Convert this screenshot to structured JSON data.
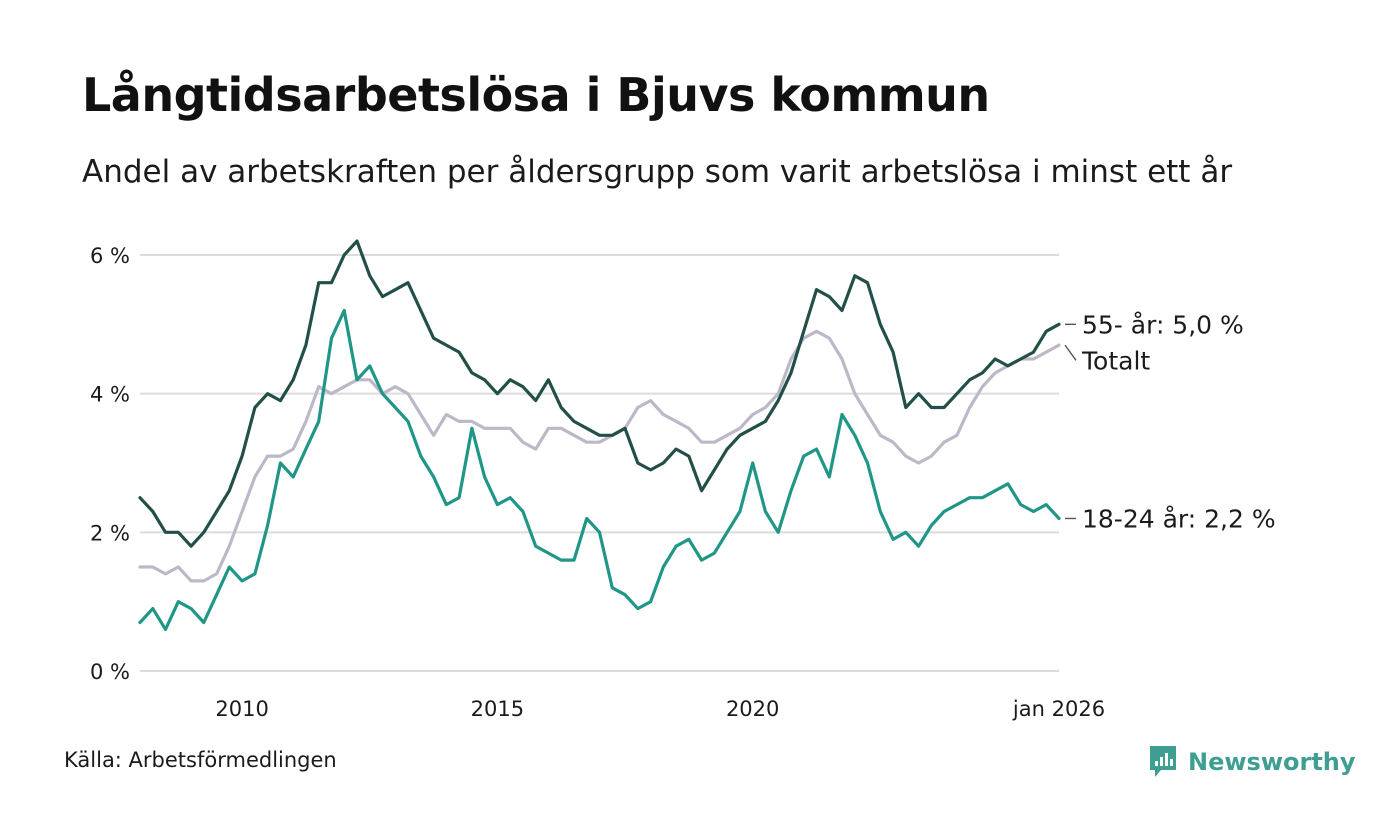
{
  "header": {
    "title": "Långtidsarbetslösa i Bjuvs kommun",
    "subtitle": "Andel av arbetskraften per åldersgrupp som varit arbetslösa i minst ett år"
  },
  "footer": {
    "source": "Källa: Arbetsförmedlingen",
    "brand": "Newsworthy",
    "brand_color": "#3e9e92"
  },
  "chart_data": {
    "type": "line",
    "title": "Långtidsarbetslösa i Bjuvs kommun",
    "xlabel": "",
    "ylabel": "",
    "xlim": [
      2008.0,
      2026.0
    ],
    "ylim": [
      0,
      6
    ],
    "grid": true,
    "legend": "direct labels at right end of lines",
    "y_ticks": [
      {
        "value": 0,
        "label": "0 %"
      },
      {
        "value": 2,
        "label": "2 %"
      },
      {
        "value": 4,
        "label": "4 %"
      },
      {
        "value": 6,
        "label": "6 %"
      }
    ],
    "x_ticks": [
      {
        "value": 2010,
        "label": "2010"
      },
      {
        "value": 2015,
        "label": "2015"
      },
      {
        "value": 2020,
        "label": "2020"
      },
      {
        "value": 2026,
        "label": "jan 2026"
      }
    ],
    "series": [
      {
        "name": "Totalt",
        "end_label": "Totalt",
        "color": "#bdb8c8",
        "points": [
          [
            2008.0,
            1.5
          ],
          [
            2008.25,
            1.5
          ],
          [
            2008.5,
            1.4
          ],
          [
            2008.75,
            1.5
          ],
          [
            2009.0,
            1.3
          ],
          [
            2009.25,
            1.3
          ],
          [
            2009.5,
            1.4
          ],
          [
            2009.75,
            1.8
          ],
          [
            2010.0,
            2.3
          ],
          [
            2010.25,
            2.8
          ],
          [
            2010.5,
            3.1
          ],
          [
            2010.75,
            3.1
          ],
          [
            2011.0,
            3.2
          ],
          [
            2011.25,
            3.6
          ],
          [
            2011.5,
            4.1
          ],
          [
            2011.75,
            4.0
          ],
          [
            2012.0,
            4.1
          ],
          [
            2012.25,
            4.2
          ],
          [
            2012.5,
            4.2
          ],
          [
            2012.75,
            4.0
          ],
          [
            2013.0,
            4.1
          ],
          [
            2013.25,
            4.0
          ],
          [
            2013.5,
            3.7
          ],
          [
            2013.75,
            3.4
          ],
          [
            2014.0,
            3.7
          ],
          [
            2014.25,
            3.6
          ],
          [
            2014.5,
            3.6
          ],
          [
            2014.75,
            3.5
          ],
          [
            2015.0,
            3.5
          ],
          [
            2015.25,
            3.5
          ],
          [
            2015.5,
            3.3
          ],
          [
            2015.75,
            3.2
          ],
          [
            2016.0,
            3.5
          ],
          [
            2016.25,
            3.5
          ],
          [
            2016.5,
            3.4
          ],
          [
            2016.75,
            3.3
          ],
          [
            2017.0,
            3.3
          ],
          [
            2017.25,
            3.4
          ],
          [
            2017.5,
            3.5
          ],
          [
            2017.75,
            3.8
          ],
          [
            2018.0,
            3.9
          ],
          [
            2018.25,
            3.7
          ],
          [
            2018.5,
            3.6
          ],
          [
            2018.75,
            3.5
          ],
          [
            2019.0,
            3.3
          ],
          [
            2019.25,
            3.3
          ],
          [
            2019.5,
            3.4
          ],
          [
            2019.75,
            3.5
          ],
          [
            2020.0,
            3.7
          ],
          [
            2020.25,
            3.8
          ],
          [
            2020.5,
            4.0
          ],
          [
            2020.75,
            4.5
          ],
          [
            2021.0,
            4.8
          ],
          [
            2021.25,
            4.9
          ],
          [
            2021.5,
            4.8
          ],
          [
            2021.75,
            4.5
          ],
          [
            2022.0,
            4.0
          ],
          [
            2022.25,
            3.7
          ],
          [
            2022.5,
            3.4
          ],
          [
            2022.75,
            3.3
          ],
          [
            2023.0,
            3.1
          ],
          [
            2023.25,
            3.0
          ],
          [
            2023.5,
            3.1
          ],
          [
            2023.75,
            3.3
          ],
          [
            2024.0,
            3.4
          ],
          [
            2024.25,
            3.8
          ],
          [
            2024.5,
            4.1
          ],
          [
            2024.75,
            4.3
          ],
          [
            2025.0,
            4.4
          ],
          [
            2025.25,
            4.5
          ],
          [
            2025.5,
            4.5
          ],
          [
            2025.75,
            4.6
          ],
          [
            2026.0,
            4.7
          ]
        ]
      },
      {
        "name": "55- år",
        "end_label": "55- år: 5,0 %",
        "color": "#234f49",
        "points": [
          [
            2008.0,
            2.5
          ],
          [
            2008.25,
            2.3
          ],
          [
            2008.5,
            2.0
          ],
          [
            2008.75,
            2.0
          ],
          [
            2009.0,
            1.8
          ],
          [
            2009.25,
            2.0
          ],
          [
            2009.5,
            2.3
          ],
          [
            2009.75,
            2.6
          ],
          [
            2010.0,
            3.1
          ],
          [
            2010.25,
            3.8
          ],
          [
            2010.5,
            4.0
          ],
          [
            2010.75,
            3.9
          ],
          [
            2011.0,
            4.2
          ],
          [
            2011.25,
            4.7
          ],
          [
            2011.5,
            5.6
          ],
          [
            2011.75,
            5.6
          ],
          [
            2012.0,
            6.0
          ],
          [
            2012.25,
            6.2
          ],
          [
            2012.5,
            5.7
          ],
          [
            2012.75,
            5.4
          ],
          [
            2013.0,
            5.5
          ],
          [
            2013.25,
            5.6
          ],
          [
            2013.5,
            5.2
          ],
          [
            2013.75,
            4.8
          ],
          [
            2014.0,
            4.7
          ],
          [
            2014.25,
            4.6
          ],
          [
            2014.5,
            4.3
          ],
          [
            2014.75,
            4.2
          ],
          [
            2015.0,
            4.0
          ],
          [
            2015.25,
            4.2
          ],
          [
            2015.5,
            4.1
          ],
          [
            2015.75,
            3.9
          ],
          [
            2016.0,
            4.2
          ],
          [
            2016.25,
            3.8
          ],
          [
            2016.5,
            3.6
          ],
          [
            2016.75,
            3.5
          ],
          [
            2017.0,
            3.4
          ],
          [
            2017.25,
            3.4
          ],
          [
            2017.5,
            3.5
          ],
          [
            2017.75,
            3.0
          ],
          [
            2018.0,
            2.9
          ],
          [
            2018.25,
            3.0
          ],
          [
            2018.5,
            3.2
          ],
          [
            2018.75,
            3.1
          ],
          [
            2019.0,
            2.6
          ],
          [
            2019.25,
            2.9
          ],
          [
            2019.5,
            3.2
          ],
          [
            2019.75,
            3.4
          ],
          [
            2020.0,
            3.5
          ],
          [
            2020.25,
            3.6
          ],
          [
            2020.5,
            3.9
          ],
          [
            2020.75,
            4.3
          ],
          [
            2021.0,
            4.9
          ],
          [
            2021.25,
            5.5
          ],
          [
            2021.5,
            5.4
          ],
          [
            2021.75,
            5.2
          ],
          [
            2022.0,
            5.7
          ],
          [
            2022.25,
            5.6
          ],
          [
            2022.5,
            5.0
          ],
          [
            2022.75,
            4.6
          ],
          [
            2023.0,
            3.8
          ],
          [
            2023.25,
            4.0
          ],
          [
            2023.5,
            3.8
          ],
          [
            2023.75,
            3.8
          ],
          [
            2024.0,
            4.0
          ],
          [
            2024.25,
            4.2
          ],
          [
            2024.5,
            4.3
          ],
          [
            2024.75,
            4.5
          ],
          [
            2025.0,
            4.4
          ],
          [
            2025.25,
            4.5
          ],
          [
            2025.5,
            4.6
          ],
          [
            2025.75,
            4.9
          ],
          [
            2026.0,
            5.0
          ]
        ]
      },
      {
        "name": "18-24 år",
        "end_label": "18-24 år: 2,2 %",
        "color": "#1f9686",
        "points": [
          [
            2008.0,
            0.7
          ],
          [
            2008.25,
            0.9
          ],
          [
            2008.5,
            0.6
          ],
          [
            2008.75,
            1.0
          ],
          [
            2009.0,
            0.9
          ],
          [
            2009.25,
            0.7
          ],
          [
            2009.5,
            1.1
          ],
          [
            2009.75,
            1.5
          ],
          [
            2010.0,
            1.3
          ],
          [
            2010.25,
            1.4
          ],
          [
            2010.5,
            2.1
          ],
          [
            2010.75,
            3.0
          ],
          [
            2011.0,
            2.8
          ],
          [
            2011.25,
            3.2
          ],
          [
            2011.5,
            3.6
          ],
          [
            2011.75,
            4.8
          ],
          [
            2012.0,
            5.2
          ],
          [
            2012.25,
            4.2
          ],
          [
            2012.5,
            4.4
          ],
          [
            2012.75,
            4.0
          ],
          [
            2013.0,
            3.8
          ],
          [
            2013.25,
            3.6
          ],
          [
            2013.5,
            3.1
          ],
          [
            2013.75,
            2.8
          ],
          [
            2014.0,
            2.4
          ],
          [
            2014.25,
            2.5
          ],
          [
            2014.5,
            3.5
          ],
          [
            2014.75,
            2.8
          ],
          [
            2015.0,
            2.4
          ],
          [
            2015.25,
            2.5
          ],
          [
            2015.5,
            2.3
          ],
          [
            2015.75,
            1.8
          ],
          [
            2016.0,
            1.7
          ],
          [
            2016.25,
            1.6
          ],
          [
            2016.5,
            1.6
          ],
          [
            2016.75,
            2.2
          ],
          [
            2017.0,
            2.0
          ],
          [
            2017.25,
            1.2
          ],
          [
            2017.5,
            1.1
          ],
          [
            2017.75,
            0.9
          ],
          [
            2018.0,
            1.0
          ],
          [
            2018.25,
            1.5
          ],
          [
            2018.5,
            1.8
          ],
          [
            2018.75,
            1.9
          ],
          [
            2019.0,
            1.6
          ],
          [
            2019.25,
            1.7
          ],
          [
            2019.5,
            2.0
          ],
          [
            2019.75,
            2.3
          ],
          [
            2020.0,
            3.0
          ],
          [
            2020.25,
            2.3
          ],
          [
            2020.5,
            2.0
          ],
          [
            2020.75,
            2.6
          ],
          [
            2021.0,
            3.1
          ],
          [
            2021.25,
            3.2
          ],
          [
            2021.5,
            2.8
          ],
          [
            2021.75,
            3.7
          ],
          [
            2022.0,
            3.4
          ],
          [
            2022.25,
            3.0
          ],
          [
            2022.5,
            2.3
          ],
          [
            2022.75,
            1.9
          ],
          [
            2023.0,
            2.0
          ],
          [
            2023.25,
            1.8
          ],
          [
            2023.5,
            2.1
          ],
          [
            2023.75,
            2.3
          ],
          [
            2024.0,
            2.4
          ],
          [
            2024.25,
            2.5
          ],
          [
            2024.5,
            2.5
          ],
          [
            2024.75,
            2.6
          ],
          [
            2025.0,
            2.7
          ],
          [
            2025.25,
            2.4
          ],
          [
            2025.5,
            2.3
          ],
          [
            2025.75,
            2.4
          ],
          [
            2026.0,
            2.2
          ]
        ]
      }
    ]
  }
}
